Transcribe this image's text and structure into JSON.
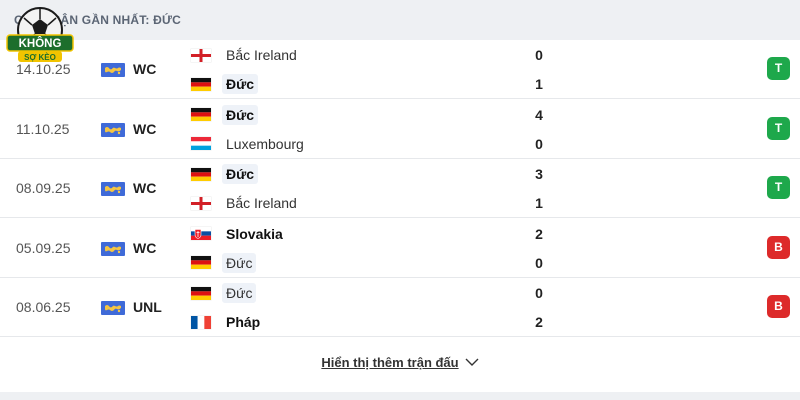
{
  "header": {
    "title": "CÁC TRẬN GẦN NHẤT: ĐỨC"
  },
  "logo": {
    "line1": "KHÔNG",
    "line2": "SỢ KÈO"
  },
  "matches": [
    {
      "date": "14.10.25",
      "competition": "WC",
      "comp_icon": "world-cup-flag-icon",
      "home": {
        "name": "Bắc Ireland",
        "flag": "northern-ireland-flag-icon",
        "score": "0"
      },
      "away": {
        "name": "Đức",
        "flag": "germany-flag-icon",
        "score": "1"
      },
      "result": "T",
      "result_color": "#1ea84b"
    },
    {
      "date": "11.10.25",
      "competition": "WC",
      "comp_icon": "world-cup-flag-icon",
      "home": {
        "name": "Đức",
        "flag": "germany-flag-icon",
        "score": "4"
      },
      "away": {
        "name": "Luxembourg",
        "flag": "luxembourg-flag-icon",
        "score": "0"
      },
      "result": "T",
      "result_color": "#1ea84b"
    },
    {
      "date": "08.09.25",
      "competition": "WC",
      "comp_icon": "world-cup-flag-icon",
      "home": {
        "name": "Đức",
        "flag": "germany-flag-icon",
        "score": "3"
      },
      "away": {
        "name": "Bắc Ireland",
        "flag": "northern-ireland-flag-icon",
        "score": "1"
      },
      "result": "T",
      "result_color": "#1ea84b"
    },
    {
      "date": "05.09.25",
      "competition": "WC",
      "comp_icon": "world-cup-flag-icon",
      "home": {
        "name": "Slovakia",
        "flag": "slovakia-flag-icon",
        "score": "2"
      },
      "away": {
        "name": "Đức",
        "flag": "germany-flag-icon",
        "score": "0"
      },
      "result": "B",
      "result_color": "#dd2a2a"
    },
    {
      "date": "08.06.25",
      "competition": "UNL",
      "comp_icon": "nations-league-flag-icon",
      "home": {
        "name": "Đức",
        "flag": "germany-flag-icon",
        "score": "0"
      },
      "away": {
        "name": "Pháp",
        "flag": "france-flag-icon",
        "score": "2"
      },
      "result": "B",
      "result_color": "#dd2a2a"
    }
  ],
  "show_more": {
    "label": "Hiển thị thêm trận đấu",
    "icon": "chevron-down-icon"
  }
}
